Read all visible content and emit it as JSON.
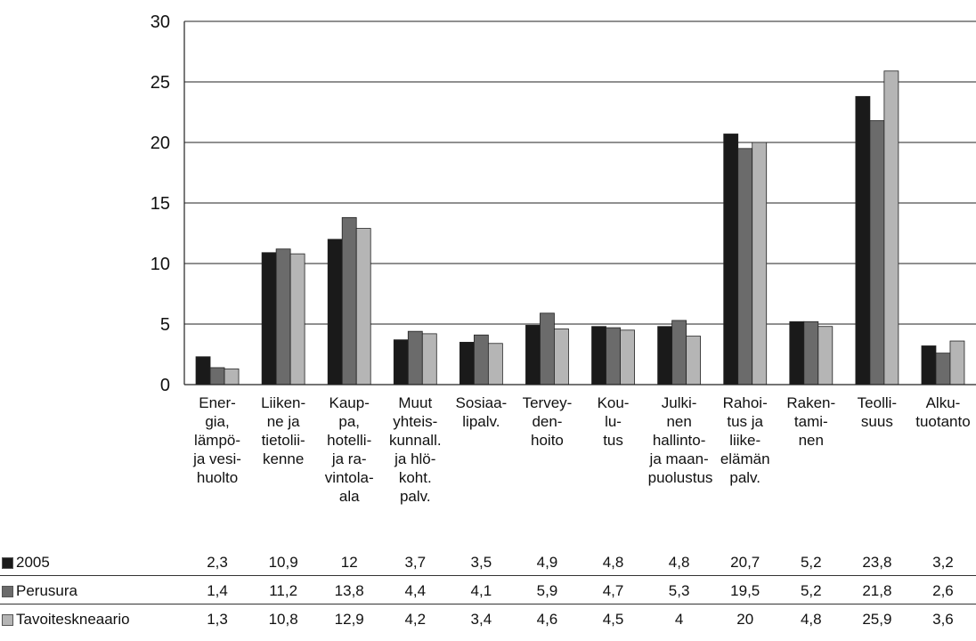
{
  "chart_data": {
    "type": "bar",
    "title": "",
    "xlabel": "",
    "ylabel": "",
    "ylim": [
      0,
      30
    ],
    "y_ticks": [
      "0",
      "5",
      "10",
      "15",
      "20",
      "25",
      "30"
    ],
    "y_tick_values": [
      0,
      5,
      10,
      15,
      20,
      25,
      30
    ],
    "grid": true,
    "legend_placement": "table-below",
    "categories": [
      [
        "Ener-",
        "gia,",
        "lämpö-",
        "ja vesi-",
        "huolto"
      ],
      [
        "Liiken-",
        "ne ja",
        "tietolii-",
        "kenne"
      ],
      [
        "Kaup-",
        "pa,",
        "hotelli-",
        "ja ra-",
        "vintola-",
        "ala"
      ],
      [
        "Muut",
        "yhteis-",
        "kunnall.",
        "ja hlö-",
        "koht.",
        "palv."
      ],
      [
        "Sosiaa-",
        "lipalv."
      ],
      [
        "Tervey-",
        "den-",
        "hoito"
      ],
      [
        "Kou-",
        "lu-",
        "tus"
      ],
      [
        "Julki-",
        "nen",
        "hallinto-",
        "ja maan-",
        "puolustus"
      ],
      [
        "Rahoi-",
        "tus ja",
        "liike-",
        "elämän",
        "palv."
      ],
      [
        "Raken-",
        "tami-",
        "nen"
      ],
      [
        "Teolli-",
        "suus"
      ],
      [
        "Alku-",
        "tuotanto"
      ]
    ],
    "series": [
      {
        "name": "2005",
        "color": "#1a1a1a",
        "values": [
          2.3,
          10.9,
          12,
          3.7,
          3.5,
          4.9,
          4.8,
          4.8,
          20.7,
          5.2,
          23.8,
          3.2
        ],
        "labels": [
          "2,3",
          "10,9",
          "12",
          "3,7",
          "3,5",
          "4,9",
          "4,8",
          "4,8",
          "20,7",
          "5,2",
          "23,8",
          "3,2"
        ]
      },
      {
        "name": "Perusura",
        "color": "#6b6b6b",
        "values": [
          1.4,
          11.2,
          13.8,
          4.4,
          4.1,
          5.9,
          4.7,
          5.3,
          19.5,
          5.2,
          21.8,
          2.6
        ],
        "labels": [
          "1,4",
          "11,2",
          "13,8",
          "4,4",
          "4,1",
          "5,9",
          "4,7",
          "5,3",
          "19,5",
          "5,2",
          "21,8",
          "2,6"
        ]
      },
      {
        "name": "Tavoiteskneaario",
        "color": "#b5b5b5",
        "values": [
          1.3,
          10.8,
          12.9,
          4.2,
          3.4,
          4.6,
          4.5,
          4,
          20,
          4.8,
          25.9,
          3.6
        ],
        "labels": [
          "1,3",
          "10,8",
          "12,9",
          "4,2",
          "3,4",
          "4,6",
          "4,5",
          "4",
          "20",
          "4,8",
          "25,9",
          "3,6"
        ]
      }
    ]
  }
}
